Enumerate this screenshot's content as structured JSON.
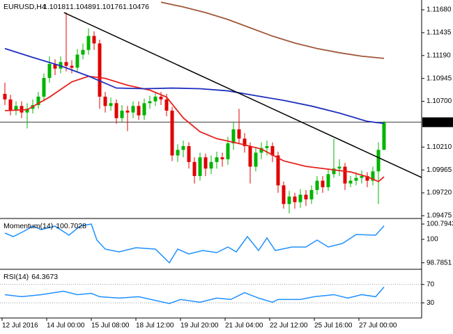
{
  "chart_data": [
    {
      "type": "candlestick",
      "title": "EURUSD,H4",
      "categories": [
        "12 Jul 2016",
        null,
        null,
        null,
        null,
        null,
        null,
        null,
        "14 Jul 00:00",
        null,
        null,
        null,
        null,
        null,
        null,
        null,
        "15 Jul 08:00",
        null,
        null,
        null,
        null,
        null,
        null,
        null,
        "18 Jul 12:00",
        null,
        null,
        null,
        null,
        null,
        null,
        null,
        "19 Jul 20:00",
        null,
        null,
        null,
        null,
        null,
        null,
        null,
        "21 Jul 04:00",
        null,
        null,
        null,
        null,
        null,
        null,
        null,
        "22 Jul 12:00",
        null,
        null,
        null,
        null,
        null,
        null,
        null,
        "25 Jul 16:00",
        null,
        null,
        null,
        null,
        null,
        null,
        null,
        "27 Jul 00:00",
        null,
        null,
        null,
        null
      ],
      "open": [
        1.1078,
        1.1072,
        1.106,
        1.1065,
        1.1058,
        1.1062,
        1.1066,
        1.1075,
        1.1095,
        1.111,
        1.1105,
        1.1112,
        1.1108,
        1.1106,
        1.112,
        1.1125,
        1.114,
        1.1132,
        1.1075,
        1.1065,
        1.1068,
        1.1052,
        1.106,
        1.1058,
        1.1065,
        1.1055,
        1.1068,
        1.107,
        1.1075,
        1.1072,
        1.106,
        1.1012,
        1.1018,
        1.1022,
        1.1005,
        1.099,
        1.101,
        1.0998,
        1.1005,
        1.101,
        1.1008,
        1.1025,
        1.104,
        1.103,
        1.1022,
        1.1,
        1.1015,
        1.102,
        1.1022,
        1.1012,
        1.098,
        1.096,
        1.0968,
        1.0962,
        1.097,
        1.0965,
        1.0975,
        1.0985,
        1.0978,
        1.0992,
        1.0998,
        1.1,
        1.0982,
        1.0985,
        1.0988,
        1.099,
        1.0985,
        1.0995,
        1.10181
      ],
      "high": [
        1.109,
        1.1077,
        1.107,
        1.107,
        1.1068,
        1.1072,
        1.108,
        1.11,
        1.1118,
        1.1115,
        1.1118,
        1.1165,
        1.1114,
        1.1126,
        1.1132,
        1.1148,
        1.1145,
        1.1136,
        1.108,
        1.1074,
        1.1072,
        1.1066,
        1.1065,
        1.107,
        1.107,
        1.1073,
        1.1076,
        1.108,
        1.108,
        1.1078,
        1.1064,
        1.1024,
        1.1028,
        1.1026,
        1.101,
        1.1015,
        1.1014,
        1.1012,
        1.1016,
        1.1015,
        1.1032,
        1.1048,
        1.1062,
        1.1036,
        1.1026,
        1.102,
        1.1026,
        1.1028,
        1.1026,
        1.1016,
        1.0984,
        1.0974,
        1.0972,
        1.0976,
        1.0975,
        1.098,
        1.099,
        1.099,
        1.0998,
        1.103,
        1.1008,
        1.1004,
        1.099,
        1.0994,
        1.0996,
        1.0994,
        1.1,
        1.1026,
        1.10489
      ],
      "low": [
        1.1066,
        1.1055,
        1.1055,
        1.1052,
        1.1041,
        1.1057,
        1.1062,
        1.107,
        1.109,
        1.1098,
        1.11,
        1.1102,
        1.11,
        1.1102,
        1.1115,
        1.112,
        1.1125,
        1.1062,
        1.1058,
        1.106,
        1.1046,
        1.1048,
        1.1038,
        1.1052,
        1.105,
        1.105,
        1.1062,
        1.1065,
        1.1066,
        1.1054,
        1.1006,
        1.1005,
        1.101,
        1.0998,
        1.0982,
        1.0985,
        1.099,
        1.0992,
        1.0998,
        1.1,
        1.1002,
        1.1018,
        1.1024,
        1.1015,
        1.0982,
        1.0995,
        1.1008,
        1.1012,
        1.1005,
        1.0972,
        1.0955,
        1.095,
        1.0955,
        1.0956,
        1.0958,
        1.096,
        1.097,
        1.0972,
        1.0974,
        1.0988,
        1.099,
        1.0975,
        1.0978,
        1.098,
        1.0982,
        1.0978,
        1.098,
        1.096,
        1.10176
      ],
      "close": [
        1.1072,
        1.106,
        1.1065,
        1.1058,
        1.1062,
        1.1066,
        1.1075,
        1.1095,
        1.111,
        1.1105,
        1.1112,
        1.1108,
        1.1106,
        1.112,
        1.1125,
        1.114,
        1.1132,
        1.1075,
        1.1065,
        1.1068,
        1.1052,
        1.106,
        1.1058,
        1.1065,
        1.1055,
        1.1068,
        1.107,
        1.1075,
        1.1072,
        1.106,
        1.1012,
        1.1018,
        1.1022,
        1.1005,
        1.099,
        1.101,
        1.0998,
        1.1005,
        1.101,
        1.1008,
        1.1025,
        1.104,
        1.103,
        1.1022,
        1.1,
        1.1015,
        1.102,
        1.1022,
        1.1012,
        1.098,
        1.096,
        1.0968,
        1.0962,
        1.097,
        1.0965,
        1.0975,
        1.0985,
        1.0978,
        1.0992,
        1.0998,
        1.1,
        1.0982,
        1.0985,
        1.0988,
        1.099,
        1.0985,
        1.0995,
        1.1018,
        1.10476
      ],
      "up_color": "#00b400",
      "down_color": "#e00000",
      "series": [
        {
          "color": "#e8201c",
          "x": [
            0,
            4,
            8,
            12,
            15,
            18,
            22,
            26,
            29,
            32,
            35,
            38,
            42,
            46,
            50,
            54,
            58,
            62,
            65,
            67,
            68
          ],
          "values": [
            1.106,
            1.1061,
            1.10745,
            1.10908,
            1.10968,
            1.10946,
            1.10872,
            1.1082,
            1.10745,
            1.10522,
            1.10374,
            1.103,
            1.10248,
            1.10189,
            1.10062,
            1.10003,
            1.09973,
            1.09944,
            1.09892,
            1.0984,
            1.09892
          ]
        },
        {
          "color": "#1f2fbf",
          "x": [
            0,
            5,
            10,
            15,
            20,
            25,
            30,
            35,
            40,
            45,
            50,
            55,
            60,
            65,
            68
          ],
          "values": [
            1.11265,
            1.1117,
            1.1108,
            1.1097,
            1.10842,
            1.10835,
            1.10842,
            1.10835,
            1.10812,
            1.1076,
            1.1071,
            1.10649,
            1.10574,
            1.10485,
            1.10463
          ]
        },
        {
          "color": "#a0583a",
          "x": [
            28,
            32,
            36,
            40,
            44,
            48,
            52,
            56,
            60,
            64,
            68
          ],
          "values": [
            1.11762,
            1.1171,
            1.1165,
            1.11576,
            1.11487,
            1.11398,
            1.11324,
            1.11265,
            1.1122,
            1.11183,
            1.1116
          ]
        }
      ],
      "trendline": {
        "color": "#000000",
        "x": [
          10.6,
          74.9
        ],
        "values": [
          1.1165,
          1.0988
        ]
      },
      "xlim": [
        -0.875,
        74.75
      ],
      "ylim": [
        1.0946,
        1.1177
      ],
      "yticks": [
        {
          "value": 1.1168,
          "label": "1.11680"
        },
        1.11435,
        {
          "value": 1.1119,
          "label": "1.11190"
        },
        1.10945,
        {
          "value": 1.107,
          "label": "1.10700"
        },
        {
          "value": 1.1021,
          "label": "1.10210"
        },
        1.09965,
        {
          "value": 1.0972,
          "label": "1.09720"
        },
        1.09475
      ]
    },
    {
      "type": "line",
      "title": "Momentum(14)",
      "color": "#1e90ff",
      "x": [
        0,
        1.5,
        3.5,
        5,
        6.5,
        9,
        11.5,
        13.5,
        15.5,
        16.5,
        18,
        20.5,
        23.5,
        27,
        29.5,
        31,
        33,
        35.5,
        38,
        40,
        41.5,
        43.5,
        45.5,
        47,
        48.5,
        51.5,
        54,
        56,
        58,
        60.5,
        61.5,
        63,
        66.5,
        68
      ],
      "values": [
        100.325,
        100.144,
        100.433,
        100.686,
        100.505,
        100.686,
        100.217,
        100.686,
        100.7943,
        99.964,
        99.495,
        99.35,
        99.567,
        99.495,
        98.7851,
        99.495,
        99.242,
        99.422,
        99.314,
        99.603,
        99.35,
        100.144,
        99.422,
        100.072,
        99.422,
        99.603,
        99.603,
        99.964,
        99.603,
        99.783,
        99.964,
        100.253,
        100.217,
        100.7028
      ],
      "ylim": [
        98.52,
        101.01
      ],
      "yticks": [
        100.7943,
        100,
        98.7851
      ],
      "grid": false
    },
    {
      "type": "line",
      "title": "RSI(14)",
      "color": "#1e90ff",
      "x": [
        0,
        3,
        6.5,
        10.5,
        13,
        15.5,
        17,
        20.5,
        24,
        29.5,
        31.5,
        35,
        38,
        40.5,
        43,
        45.5,
        48,
        49,
        53,
        55.5,
        59,
        61.5,
        64,
        66.5,
        68
      ],
      "values": [
        47.8,
        43.3,
        47.8,
        55.2,
        47.8,
        50.7,
        43.3,
        40.3,
        43.3,
        28.4,
        37.3,
        31.3,
        40.3,
        37.3,
        52.2,
        40.3,
        31.3,
        37.3,
        37.3,
        43.3,
        47.8,
        40.3,
        47.8,
        43.3,
        64.3673
      ],
      "ylim": [
        0,
        100
      ],
      "yticks": [
        70,
        30
      ],
      "grid": true
    }
  ]
}
